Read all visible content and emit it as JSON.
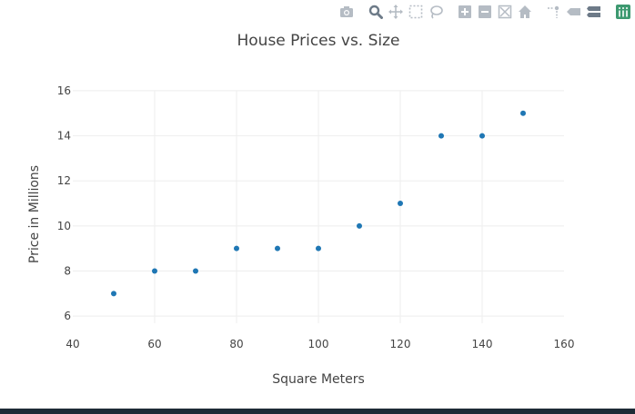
{
  "chart_data": {
    "type": "scatter",
    "title": "House Prices vs. Size",
    "xlabel": "Square Meters",
    "ylabel": "Price in Millions",
    "xlim": [
      40,
      160
    ],
    "ylim": [
      5.2,
      16.4
    ],
    "xticks": [
      "40",
      "60",
      "80",
      "100",
      "120",
      "140",
      "160"
    ],
    "yticks": [
      "6",
      "8",
      "10",
      "12",
      "14",
      "16"
    ],
    "grid": true,
    "marker_color": "#1f77b4",
    "series": [
      {
        "x": [
          50,
          60,
          70,
          80,
          90,
          100,
          110,
          120,
          130,
          140,
          150
        ],
        "y": [
          7,
          8,
          8,
          9,
          9,
          9,
          10,
          11,
          14,
          14,
          15
        ]
      }
    ]
  },
  "modebar": {
    "icons": [
      "camera-icon",
      "zoom-icon",
      "pan-icon",
      "box-select-icon",
      "lasso-icon",
      "zoom-in-icon",
      "zoom-out-icon",
      "autoscale-icon",
      "home-icon",
      "spike-lines-icon",
      "hover-closest-icon",
      "hover-compare-icon",
      "plotly-logo-icon"
    ],
    "active_icon": "zoom-icon",
    "icon_color": "#b5bcc4",
    "active_color": "#6d7a88",
    "logo_color": "#3d9970"
  }
}
